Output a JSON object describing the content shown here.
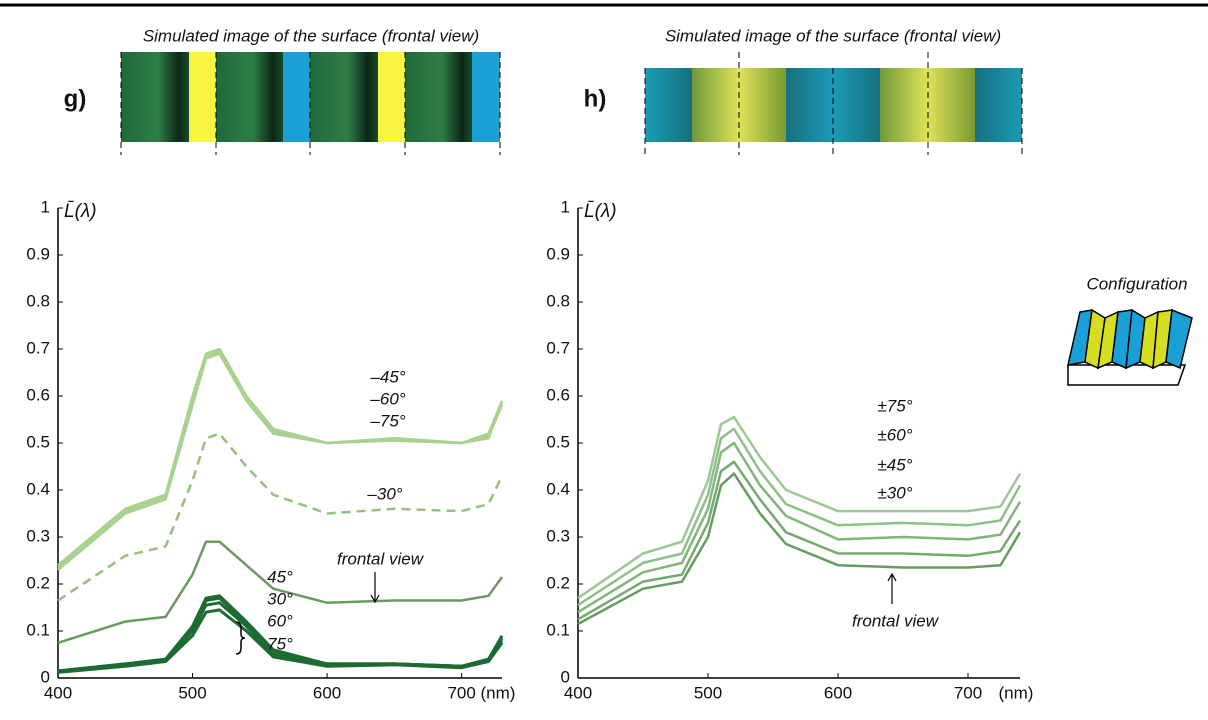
{
  "configuration_label": "Configuration",
  "chart_data": [
    {
      "type": "line",
      "panel": "g)",
      "image_title": "Simulated image of the surface (frontal view)",
      "y_label": "L̄(λ)",
      "x_label": "(nm)",
      "xlim": [
        400,
        730
      ],
      "ylim": [
        0,
        1
      ],
      "xticks": [
        400,
        500,
        600,
        700
      ],
      "yticks": [
        0,
        0.1,
        0.2,
        0.3,
        0.4,
        0.5,
        0.6,
        0.7,
        0.8,
        0.9,
        1
      ],
      "x": [
        400,
        450,
        480,
        500,
        510,
        520,
        540,
        560,
        600,
        650,
        700,
        720,
        730
      ],
      "series": [
        {
          "name": "–45°",
          "color": "#a9d18f",
          "style": "solid",
          "values": [
            0.24,
            0.36,
            0.39,
            0.6,
            0.69,
            0.7,
            0.6,
            0.53,
            0.5,
            0.505,
            0.5,
            0.52,
            0.59
          ]
        },
        {
          "name": "–60°",
          "color": "#a9d18f",
          "style": "solid",
          "values": [
            0.235,
            0.355,
            0.385,
            0.59,
            0.685,
            0.695,
            0.595,
            0.525,
            0.5,
            0.51,
            0.5,
            0.515,
            0.58
          ]
        },
        {
          "name": "–75°",
          "color": "#a9d18f",
          "style": "solid",
          "values": [
            0.23,
            0.35,
            0.38,
            0.58,
            0.68,
            0.69,
            0.59,
            0.52,
            0.5,
            0.51,
            0.5,
            0.51,
            0.585
          ]
        },
        {
          "name": "–30°",
          "color": "#92c27d",
          "style": "dashed",
          "values": [
            0.165,
            0.26,
            0.28,
            0.42,
            0.51,
            0.52,
            0.45,
            0.39,
            0.35,
            0.36,
            0.355,
            0.37,
            0.43
          ]
        },
        {
          "name": "frontal view",
          "color": "#6a9a62",
          "style": "solid",
          "values": [
            0.075,
            0.12,
            0.13,
            0.22,
            0.29,
            0.29,
            0.24,
            0.19,
            0.16,
            0.165,
            0.165,
            0.175,
            0.215
          ]
        },
        {
          "name": "45°",
          "color": "#1b6b33",
          "style": "solid",
          "values": [
            0.015,
            0.03,
            0.04,
            0.11,
            0.17,
            0.175,
            0.12,
            0.06,
            0.03,
            0.03,
            0.025,
            0.04,
            0.09
          ]
        },
        {
          "name": "30°",
          "color": "#1b6b33",
          "style": "solid",
          "values": [
            0.015,
            0.03,
            0.04,
            0.105,
            0.165,
            0.17,
            0.115,
            0.055,
            0.03,
            0.03,
            0.025,
            0.04,
            0.085
          ]
        },
        {
          "name": "60°",
          "color": "#1b6b33",
          "style": "solid",
          "values": [
            0.015,
            0.028,
            0.038,
            0.1,
            0.155,
            0.16,
            0.11,
            0.05,
            0.028,
            0.03,
            0.025,
            0.04,
            0.08
          ]
        },
        {
          "name": "75°",
          "color": "#1b6b33",
          "style": "solid",
          "values": [
            0.012,
            0.025,
            0.035,
            0.09,
            0.14,
            0.145,
            0.1,
            0.045,
            0.025,
            0.028,
            0.022,
            0.035,
            0.075
          ]
        }
      ]
    },
    {
      "type": "line",
      "panel": "h)",
      "image_title": "Simulated image of the surface (frontal view)",
      "y_label": "L̄(λ)",
      "x_label": "(nm)",
      "xlim": [
        400,
        740
      ],
      "ylim": [
        0,
        1
      ],
      "xticks": [
        400,
        500,
        600,
        700
      ],
      "yticks": [
        0,
        0.1,
        0.2,
        0.3,
        0.4,
        0.5,
        0.6,
        0.7,
        0.8,
        0.9,
        1
      ],
      "x": [
        400,
        450,
        480,
        500,
        510,
        520,
        540,
        560,
        600,
        650,
        700,
        725,
        740
      ],
      "series": [
        {
          "name": "±75°",
          "color": "#9cc896",
          "style": "solid",
          "values": [
            0.17,
            0.265,
            0.29,
            0.42,
            0.54,
            0.555,
            0.47,
            0.4,
            0.355,
            0.355,
            0.355,
            0.365,
            0.435
          ]
        },
        {
          "name": "±60°",
          "color": "#8fbf89",
          "style": "solid",
          "values": [
            0.155,
            0.245,
            0.265,
            0.39,
            0.51,
            0.53,
            0.44,
            0.37,
            0.325,
            0.33,
            0.325,
            0.335,
            0.41
          ]
        },
        {
          "name": "±45°",
          "color": "#82b57c",
          "style": "solid",
          "values": [
            0.14,
            0.225,
            0.245,
            0.36,
            0.48,
            0.5,
            0.41,
            0.345,
            0.295,
            0.3,
            0.295,
            0.305,
            0.375
          ]
        },
        {
          "name": "±30°",
          "color": "#74aa6e",
          "style": "solid",
          "values": [
            0.125,
            0.205,
            0.22,
            0.33,
            0.44,
            0.46,
            0.38,
            0.31,
            0.265,
            0.265,
            0.26,
            0.27,
            0.335
          ]
        },
        {
          "name": "frontal view",
          "color": "#659d60",
          "style": "solid",
          "values": [
            0.115,
            0.19,
            0.205,
            0.3,
            0.41,
            0.435,
            0.35,
            0.285,
            0.24,
            0.235,
            0.235,
            0.24,
            0.31
          ]
        }
      ]
    }
  ]
}
